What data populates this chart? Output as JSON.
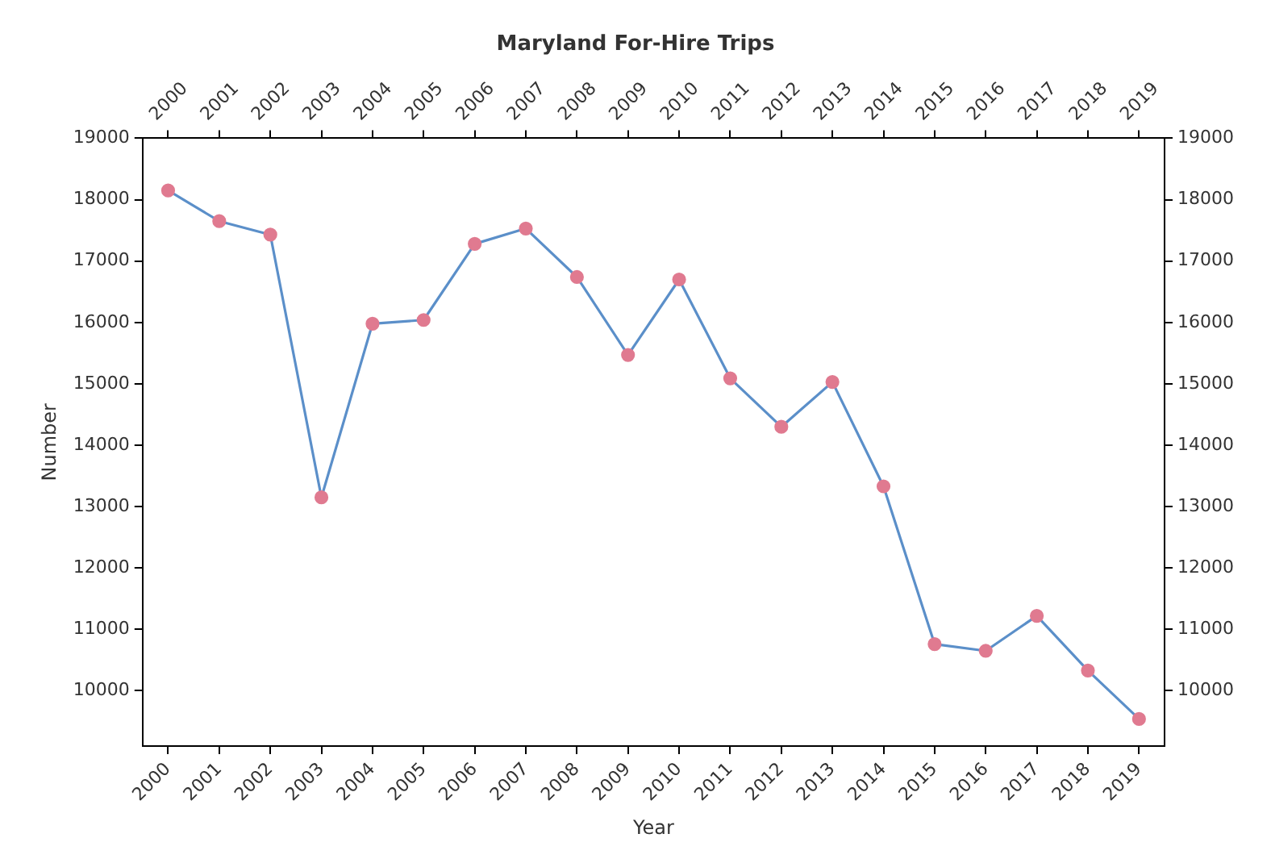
{
  "chart_data": {
    "type": "line",
    "title": "Maryland For-Hire Trips",
    "xlabel": "Year",
    "ylabel": "Number",
    "categories": [
      "2000",
      "2001",
      "2002",
      "2003",
      "2004",
      "2005",
      "2006",
      "2007",
      "2008",
      "2009",
      "2010",
      "2011",
      "2012",
      "2013",
      "2014",
      "2015",
      "2016",
      "2017",
      "2018",
      "2019"
    ],
    "series": [
      {
        "color": "#5b8fc9",
        "colors": [
          "#e07a90",
          "#e07a90",
          "#e07a90",
          "#e07a90",
          "#e07a90",
          "#e07a90",
          "#e07a90",
          "#e07a90",
          "#e07a90",
          "#e07a90",
          "#e07a90",
          "#e07a90",
          "#e07a90",
          "#e07a90",
          "#e07a90",
          "#e07a90",
          "#e07a90",
          "#e07a90",
          "#e07a90",
          "#e07a90"
        ],
        "values": [
          18150,
          17650,
          17430,
          13150,
          15980,
          16040,
          17280,
          17530,
          16740,
          15470,
          16700,
          15090,
          14300,
          15030,
          13330,
          10760,
          10650,
          11220,
          10330,
          9540
        ]
      }
    ],
    "ylim": [
      9100,
      19000
    ],
    "yticks": [
      10000,
      11000,
      12000,
      13000,
      14000,
      15000,
      16000,
      17000,
      18000,
      19000
    ],
    "y2lim": [
      9100,
      19000
    ],
    "y2ticks": [
      10000,
      11000,
      12000,
      13000,
      14000,
      15000,
      16000,
      17000,
      18000,
      19000
    ],
    "grid": false,
    "legend": false,
    "marker": "circle",
    "line_style": "solid"
  }
}
